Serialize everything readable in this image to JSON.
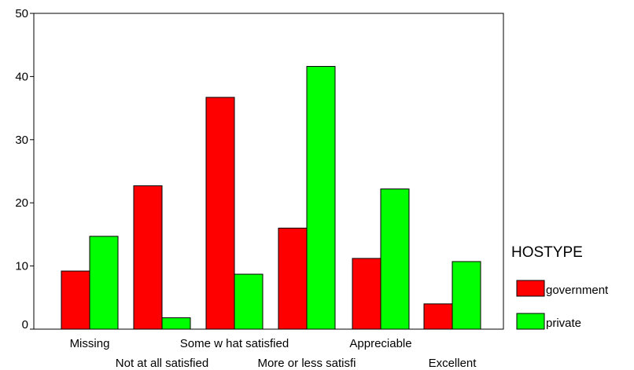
{
  "chart_data": {
    "type": "bar",
    "categories": [
      "Missing",
      "Not at all satisfied",
      "Some w hat satisfied",
      "More or less satisfi",
      "Appreciable",
      "Excellent"
    ],
    "series": [
      {
        "name": "government",
        "color": "#ff0000",
        "values": [
          9.2,
          22.7,
          36.7,
          16.0,
          11.2,
          4.0
        ]
      },
      {
        "name": "private",
        "color": "#00ff00",
        "values": [
          14.7,
          1.8,
          8.7,
          41.6,
          22.2,
          10.7
        ]
      }
    ],
    "yticks": [
      "0",
      "10",
      "20",
      "30",
      "40",
      "50"
    ],
    "ylim": [
      0,
      50
    ],
    "legend": {
      "title": "HOSTYPE",
      "position": "right"
    },
    "grid": false
  }
}
